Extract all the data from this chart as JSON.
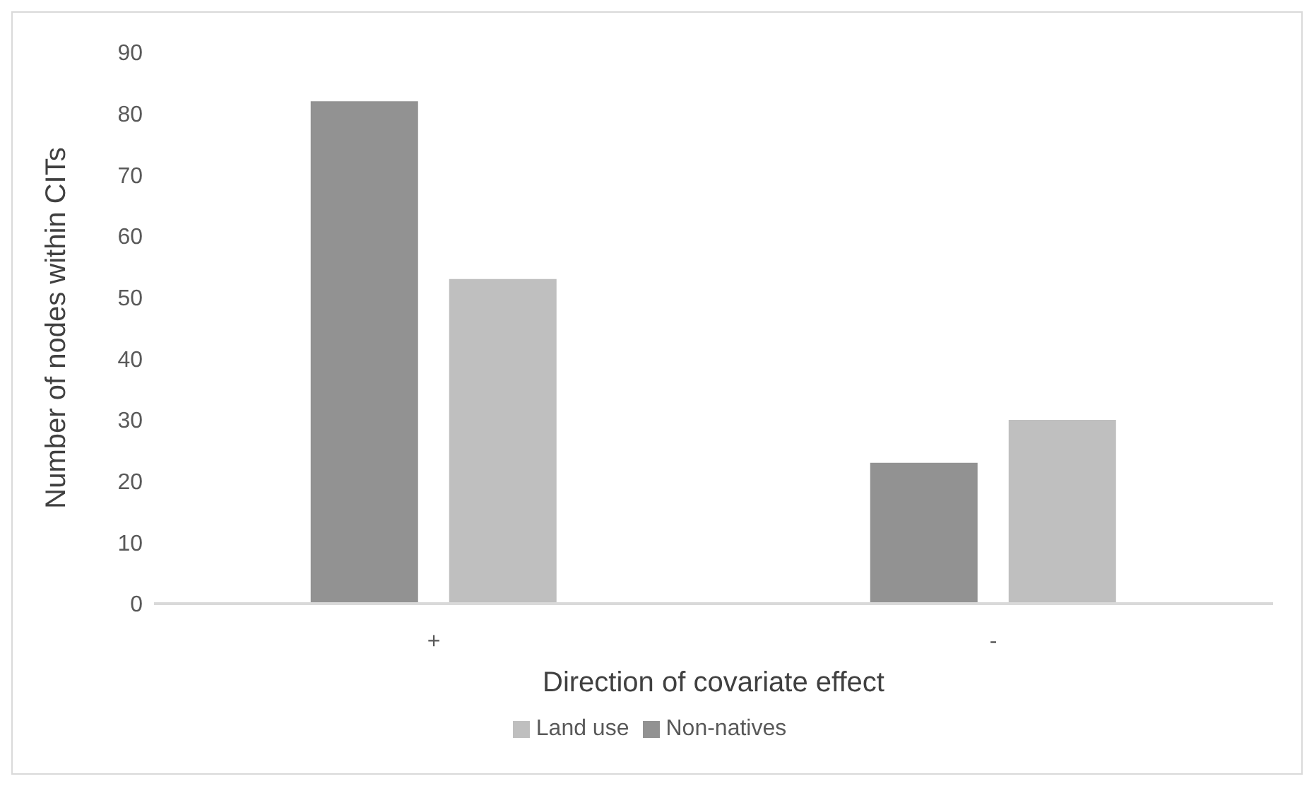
{
  "chart_data": {
    "type": "bar",
    "xlabel": "Direction of covariate effect",
    "ylabel": "Number of nodes within CITs",
    "categories": [
      "+",
      "-"
    ],
    "series": [
      {
        "name": "Non-natives",
        "color": "#929292",
        "values": [
          82,
          23
        ]
      },
      {
        "name": "Land use",
        "color": "#bfbfbf",
        "values": [
          53,
          30
        ]
      }
    ],
    "ylim": [
      0,
      90
    ],
    "yticks": [
      0,
      10,
      20,
      30,
      40,
      50,
      60,
      70,
      80,
      90
    ],
    "grid": false,
    "legend": "bottom"
  }
}
